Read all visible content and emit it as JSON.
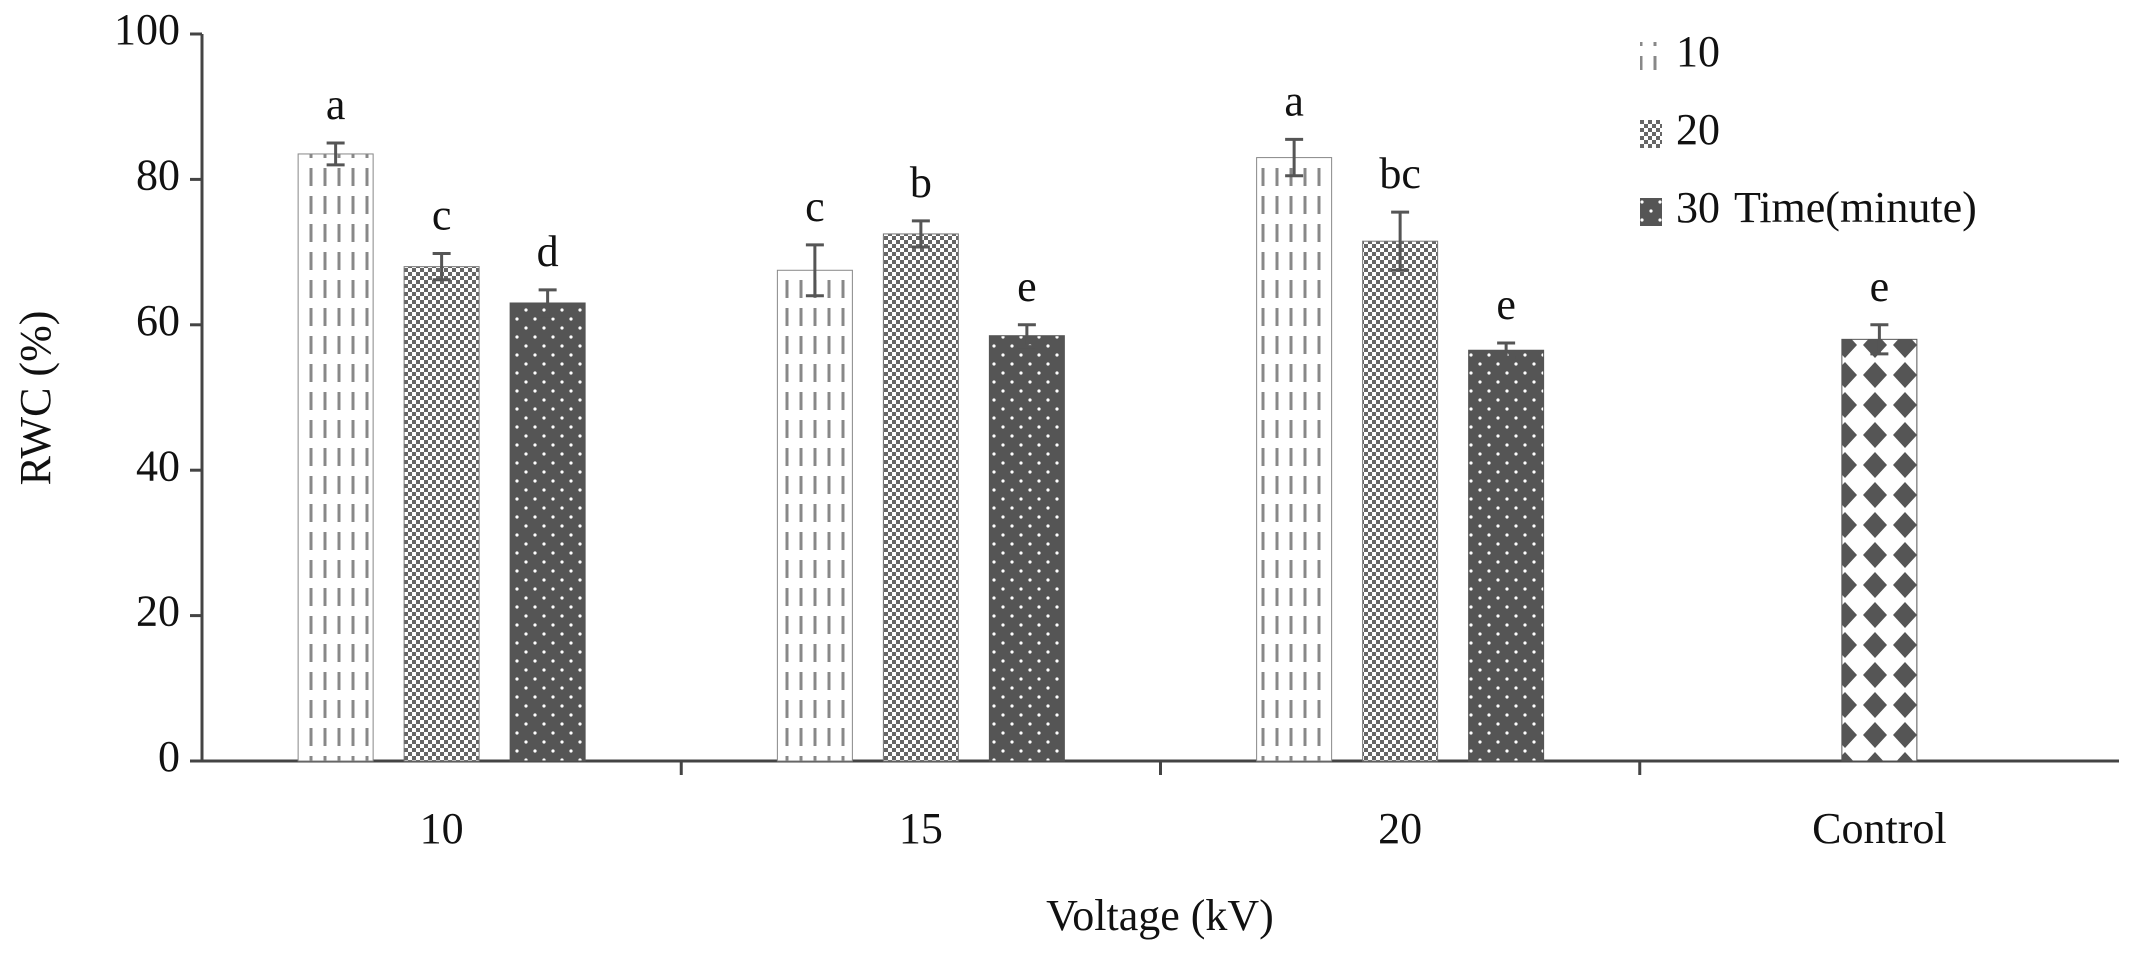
{
  "chart_data": {
    "type": "bar",
    "categories": [
      "10",
      "15",
      "20",
      "Control"
    ],
    "xlabel": "Voltage (kV)",
    "ylabel": "RWC (%)",
    "legend_title": "Time(minute)",
    "series": [
      {
        "name": "10",
        "color": "#888888",
        "pattern": "dashes",
        "values": [
          83.5,
          67.5,
          83,
          null
        ],
        "errors": [
          1.5,
          3.5,
          2.5,
          null
        ],
        "labels": [
          "a",
          "c",
          "a",
          null
        ]
      },
      {
        "name": "20",
        "color": "#777777",
        "pattern": "checker",
        "values": [
          68,
          72.5,
          71.5,
          null
        ],
        "errors": [
          1.8,
          1.8,
          4,
          null
        ],
        "labels": [
          "c",
          "b",
          "bc",
          null
        ]
      },
      {
        "name": "30",
        "color": "#555555",
        "pattern": "dots",
        "values": [
          63,
          58.5,
          56.5,
          null
        ],
        "errors": [
          1.8,
          1.5,
          1,
          null
        ],
        "labels": [
          "d",
          "e",
          "e",
          null
        ]
      }
    ],
    "control": {
      "value": 58,
      "error": 2,
      "label": "e",
      "color": "#555555",
      "pattern": "diamonds"
    },
    "ylim": [
      0,
      100
    ],
    "yticks": [
      0,
      20,
      40,
      60,
      80,
      100
    ]
  }
}
